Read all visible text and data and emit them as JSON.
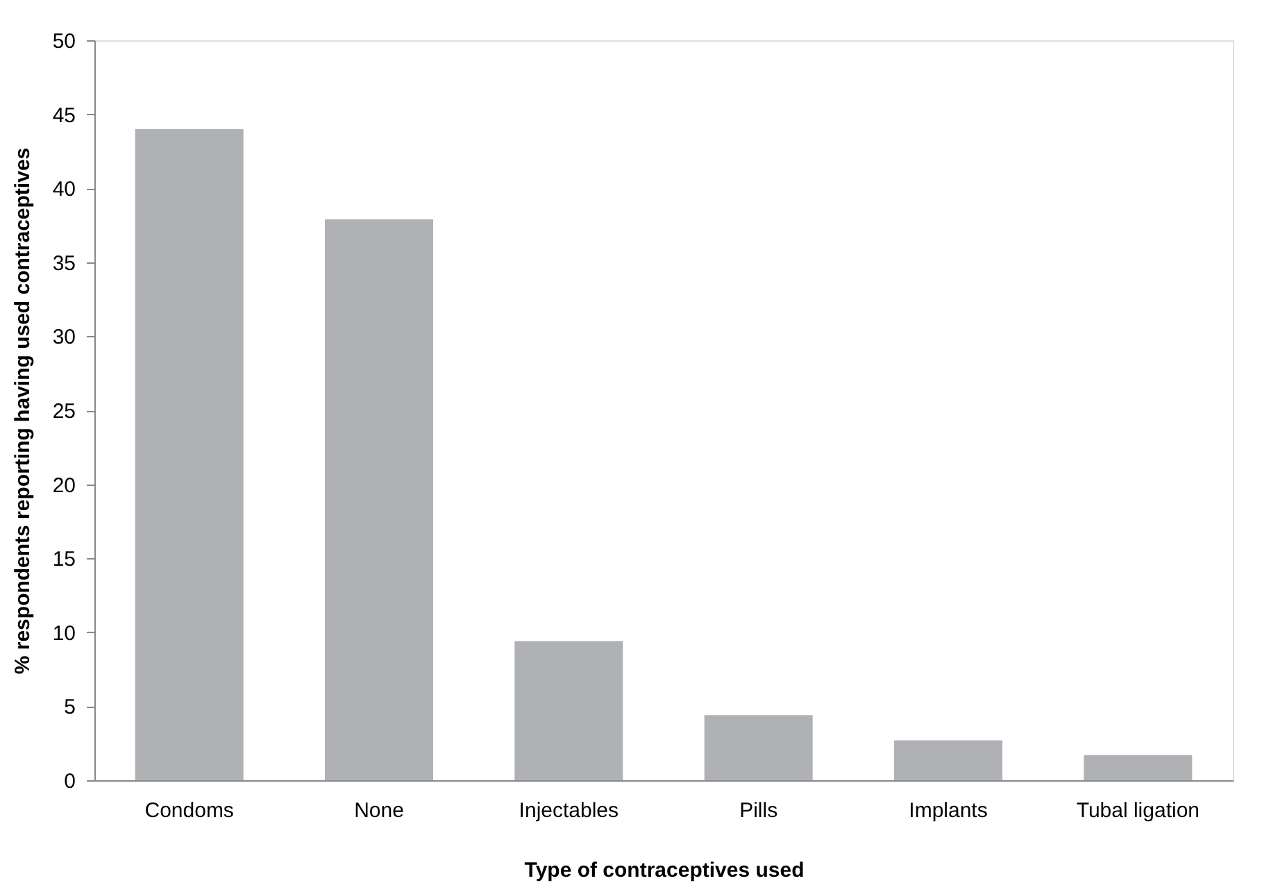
{
  "chart_data": {
    "type": "bar",
    "xlabel": "Type of contraceptives used",
    "ylabel": "% respondents reporting  having used contraceptives",
    "categories": [
      "Condoms",
      "None",
      "Injectables",
      "Pills",
      "Implants",
      "Tubal ligation"
    ],
    "values": [
      44.0,
      37.9,
      9.4,
      4.4,
      2.7,
      1.7
    ],
    "color": "#b0b1b5",
    "ylim": [
      0,
      50
    ],
    "yticks": [
      0,
      5,
      10,
      15,
      20,
      25,
      30,
      35,
      40,
      45,
      50
    ],
    "grid": false
  }
}
